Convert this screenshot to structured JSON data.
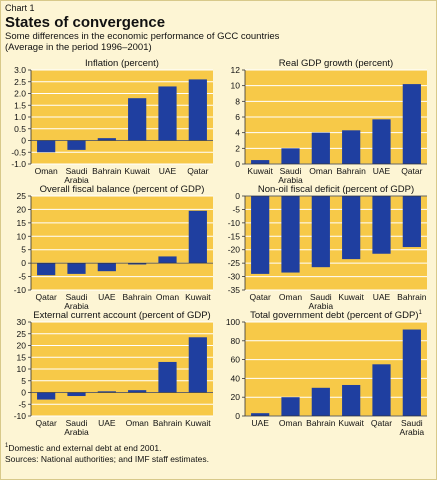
{
  "header": {
    "chart_label": "Chart 1",
    "title": "States of convergence",
    "subtitle_line1": "Some differences in the economic performance of GCC countries",
    "subtitle_line2": "(Average in the period 1996–2001)"
  },
  "footnote": {
    "marker": "1",
    "text": "Domestic and external debt at end 2001.",
    "sources": "Sources: National authorities; and IMF staff estimates."
  },
  "colors": {
    "bar": "#1f3fa0",
    "panel_bg": "#f7c948",
    "grid": "#ffffff"
  },
  "chart_data": [
    {
      "type": "bar",
      "title": "Inflation (percent)",
      "categories": [
        "Oman",
        "Saudi Arabia",
        "Bahrain",
        "Kuwait",
        "UAE",
        "Qatar"
      ],
      "values": [
        -0.5,
        -0.4,
        0.1,
        1.8,
        2.3,
        2.6
      ],
      "ylim": [
        -1.0,
        3.0
      ],
      "ticks": [
        "3.0",
        "2.5",
        "2.0",
        "1.5",
        "1.0",
        "0.5",
        "0",
        "-0.5",
        "-1.0"
      ],
      "grid": true
    },
    {
      "type": "bar",
      "title": "Real GDP growth (percent)",
      "categories": [
        "Kuwait",
        "Saudi Arabia",
        "Oman",
        "Bahrain",
        "UAE",
        "Qatar"
      ],
      "values": [
        0.5,
        2.0,
        4.0,
        4.3,
        5.7,
        10.2
      ],
      "ylim": [
        0,
        12
      ],
      "ticks": [
        "12",
        "10",
        "8",
        "6",
        "4",
        "2",
        "0"
      ],
      "grid": true
    },
    {
      "type": "bar",
      "title": "Overall fiscal balance (percent of GDP)",
      "categories": [
        "Qatar",
        "Saudi Arabia",
        "UAE",
        "Bahrain",
        "Oman",
        "Kuwait"
      ],
      "values": [
        -4.5,
        -4.0,
        -3.0,
        -0.5,
        2.5,
        19.5
      ],
      "ylim": [
        -10,
        25
      ],
      "ticks": [
        "25",
        "20",
        "15",
        "10",
        "5",
        "0",
        "-5",
        "-10"
      ],
      "grid": true
    },
    {
      "type": "bar",
      "title": "Non-oil fiscal deficit (percent of GDP)",
      "categories": [
        "Qatar",
        "Oman",
        "Saudi Arabia",
        "Kuwait",
        "UAE",
        "Bahrain"
      ],
      "values": [
        -29,
        -28.5,
        -26.5,
        -23.5,
        -21.5,
        -19
      ],
      "ylim": [
        -35,
        0
      ],
      "ticks": [
        "0",
        "-5",
        "-10",
        "-15",
        "-20",
        "-25",
        "-30",
        "-35"
      ],
      "grid": true
    },
    {
      "type": "bar",
      "title": "External current account (percent of GDP)",
      "categories": [
        "Qatar",
        "Saudi Arabia",
        "UAE",
        "Oman",
        "Bahrain",
        "Kuwait"
      ],
      "values": [
        -3.0,
        -1.5,
        0.5,
        1.0,
        13.0,
        23.5
      ],
      "ylim": [
        -10,
        30
      ],
      "ticks": [
        "30",
        "25",
        "20",
        "15",
        "10",
        "5",
        "0",
        "-5",
        "-10"
      ],
      "grid": true
    },
    {
      "type": "bar",
      "title": "Total government debt (percent of GDP)",
      "title_sup": "1",
      "categories": [
        "UAE",
        "Oman",
        "Bahrain",
        "Kuwait",
        "Qatar",
        "Saudi Arabia"
      ],
      "values": [
        3,
        20,
        30,
        33,
        55,
        92
      ],
      "ylim": [
        0,
        100
      ],
      "ticks": [
        "100",
        "80",
        "60",
        "40",
        "20",
        "0"
      ],
      "grid": true
    }
  ]
}
